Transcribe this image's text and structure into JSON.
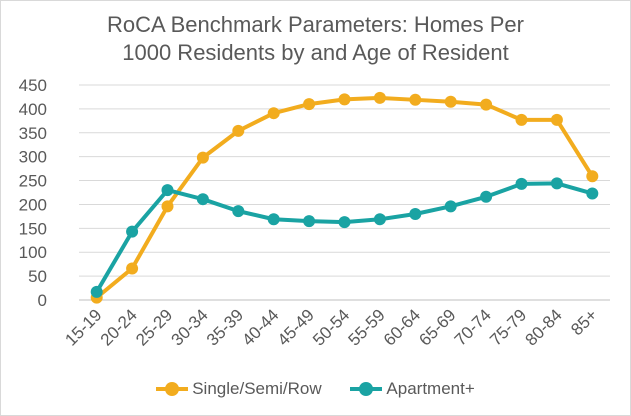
{
  "chart_data": {
    "type": "line",
    "title": "RoCA Benchmark Parameters: Homes Per 1000 Residents by and Age of Resident",
    "title_lines": [
      "RoCA Benchmark Parameters: Homes Per",
      "1000 Residents by and Age of Resident"
    ],
    "xlabel": "",
    "ylabel": "",
    "categories": [
      "15-19",
      "20-24",
      "25-29",
      "30-34",
      "35-39",
      "40-44",
      "45-49",
      "50-54",
      "55-59",
      "60-64",
      "65-69",
      "70-74",
      "75-79",
      "80-84",
      "85+"
    ],
    "ylim": [
      0,
      450
    ],
    "yticks": [
      0,
      50,
      100,
      150,
      200,
      250,
      300,
      350,
      400,
      450
    ],
    "grid": true,
    "legend_position": "bottom",
    "series": [
      {
        "name": "Single/Semi/Row",
        "color": "#f2ac1e",
        "values": [
          5,
          66,
          196,
          298,
          354,
          391,
          410,
          420,
          423,
          419,
          415,
          409,
          377,
          377,
          259
        ]
      },
      {
        "name": "Apartment+",
        "color": "#1aa3a3",
        "values": [
          17,
          143,
          230,
          211,
          186,
          169,
          165,
          163,
          169,
          180,
          196,
          216,
          243,
          244,
          223
        ]
      }
    ]
  }
}
